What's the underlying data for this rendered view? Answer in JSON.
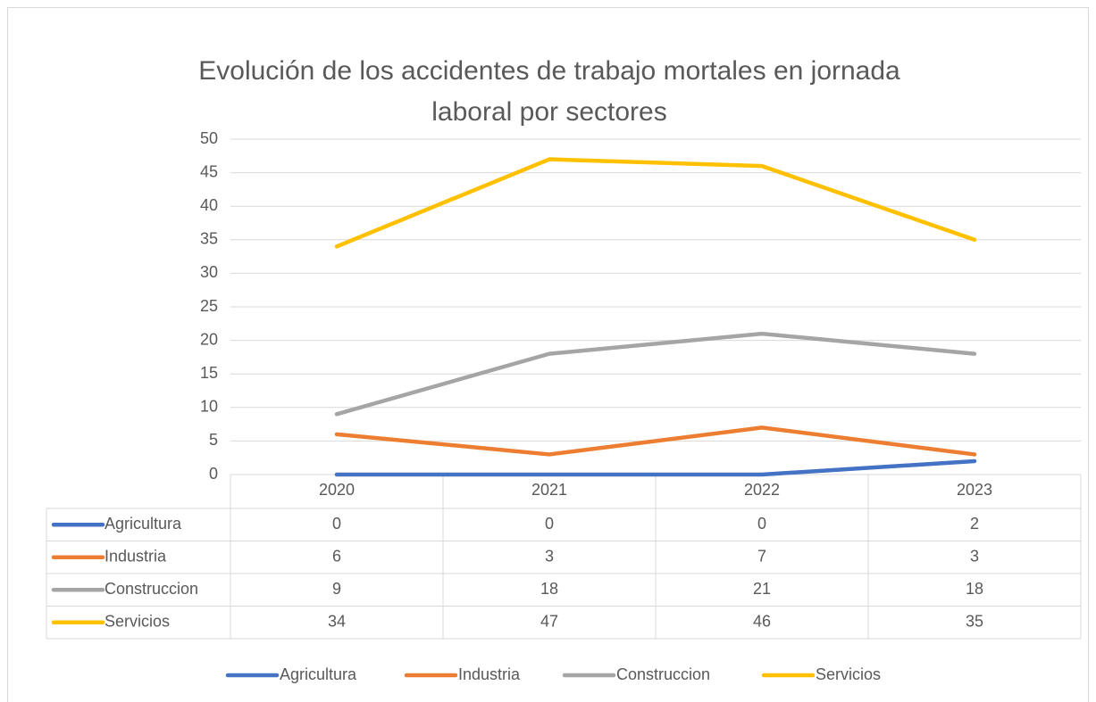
{
  "chart_data": {
    "type": "line",
    "title": [
      "Evolución de los accidentes de trabajo mortales  en jornada",
      "laboral por sectores"
    ],
    "categories": [
      "2020",
      "2021",
      "2022",
      "2023"
    ],
    "series": [
      {
        "name": "Agricultura",
        "color": "#4472c4",
        "values": [
          0,
          0,
          0,
          2
        ]
      },
      {
        "name": "Industria",
        "color": "#ed7d31",
        "values": [
          6,
          3,
          7,
          3
        ]
      },
      {
        "name": "Construccion",
        "color": "#a5a5a5",
        "values": [
          9,
          18,
          21,
          18
        ]
      },
      {
        "name": "Servicios",
        "color": "#ffc000",
        "values": [
          34,
          47,
          46,
          35
        ]
      }
    ],
    "ylim": [
      0,
      50
    ],
    "yticks": [
      0,
      5,
      10,
      15,
      20,
      25,
      30,
      35,
      40,
      45,
      50
    ],
    "grid": true,
    "legend": "bottom",
    "data_table": true
  }
}
